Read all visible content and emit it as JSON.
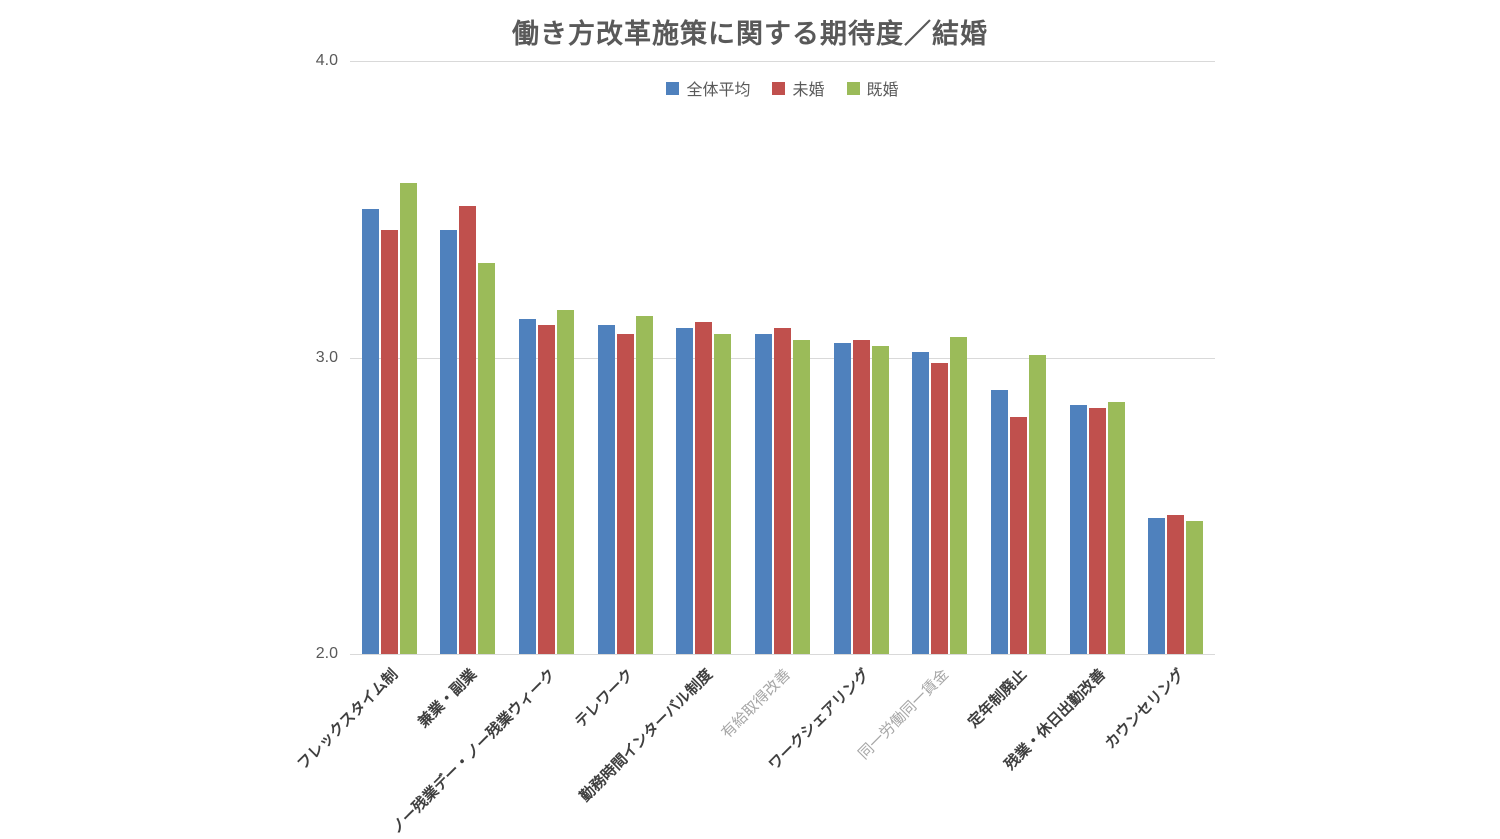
{
  "colors": {
    "background": "#ffffff",
    "gridline": "#d9d9d9",
    "title_text": "#595959",
    "axis_text": "#595959",
    "category_text": "#3f3f3f",
    "category_text_muted": "#a6a6a6"
  },
  "chart_data": {
    "type": "bar",
    "title": "働き方改革施策に関する期待度／結婚",
    "xlabel": "",
    "ylabel": "",
    "ylim": [
      2.0,
      4.0
    ],
    "yticks": [
      4.0,
      3.0,
      2.0
    ],
    "ytick_labels": [
      "4.0",
      "3.0",
      "2.0"
    ],
    "grid": "horizontal",
    "legend_position": "top-center",
    "categories": [
      "フレックスタイム制",
      "兼業・副業",
      "ノー残業デー・ノー残業ウィーク",
      "テレワーク",
      "勤務時間インターバル制度",
      "有給取得改善",
      "ワークシェアリング",
      "同一労働同一賃金",
      "定年制廃止",
      "残業・休日出勤改善",
      "カウンセリング"
    ],
    "muted_category_indices": [
      5,
      7
    ],
    "series": [
      {
        "key": "overall-average",
        "name": "全体平均",
        "color": "#4F81BD",
        "values": [
          3.5,
          3.43,
          3.13,
          3.11,
          3.1,
          3.08,
          3.05,
          3.02,
          2.89,
          2.84,
          2.46
        ]
      },
      {
        "key": "unmarried",
        "name": "未婚",
        "color": "#C0504D",
        "values": [
          3.43,
          3.51,
          3.11,
          3.08,
          3.12,
          3.1,
          3.06,
          2.98,
          2.8,
          2.83,
          2.47
        ]
      },
      {
        "key": "married",
        "name": "既婚",
        "color": "#9BBB59",
        "values": [
          3.59,
          3.32,
          3.16,
          3.14,
          3.08,
          3.06,
          3.04,
          3.07,
          3.01,
          2.85,
          2.45
        ]
      }
    ]
  }
}
